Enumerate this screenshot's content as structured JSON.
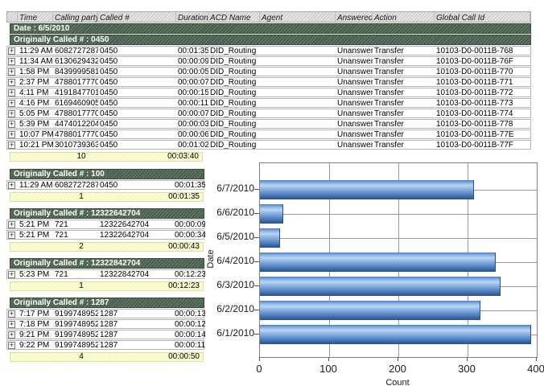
{
  "table": {
    "columns": [
      "Time",
      "Calling party #",
      "Called #",
      "Duration",
      "ACD Name",
      "Agent",
      "Answered",
      "Action",
      "Global Call Id"
    ],
    "date_header": "Date : 6/5/2010",
    "main_group": {
      "label": "Originally Called # : 0450",
      "rows": [
        [
          "11:29 AM",
          "6082727287",
          "0450",
          "00:01:35",
          "DID_Routing",
          "",
          "Unanswered",
          "Transfer",
          "10103-D0-0011B-768"
        ],
        [
          "11:34 AM",
          "6130629432",
          "0450",
          "00:00:09",
          "DID_Routing",
          "",
          "Unanswered",
          "Transfer",
          "10103-D0-0011B-76F"
        ],
        [
          "1:58 PM",
          "8439999581",
          "0450",
          "00:00:05",
          "DID_Routing",
          "",
          "Unanswered",
          "Transfer",
          "10103-D0-0011B-770"
        ],
        [
          "2:37 PM",
          "4788017770",
          "0450",
          "00:00:07",
          "DID_Routing",
          "",
          "Unanswered",
          "Transfer",
          "10103-D0-0011B-771"
        ],
        [
          "4:11 PM",
          "4191847701",
          "0450",
          "00:00:15",
          "DID_Routing",
          "",
          "Unanswered",
          "Transfer",
          "10103-D0-0011B-772"
        ],
        [
          "4:16 PM",
          "6169460905",
          "0450",
          "00:00:11",
          "DID_Routing",
          "",
          "Unanswered",
          "Transfer",
          "10103-D0-0011B-773"
        ],
        [
          "5:05 PM",
          "4788017770",
          "0450",
          "00:00:07",
          "DID_Routing",
          "",
          "Unanswered",
          "Transfer",
          "10103-D0-0011B-774"
        ],
        [
          "5:39 PM",
          "4474012204",
          "0450",
          "00:00:03",
          "DID_Routing",
          "",
          "Unanswered",
          "Transfer",
          "10103-D0-0011B-778"
        ],
        [
          "10:07 PM",
          "4788017770",
          "0450",
          "00:00:06",
          "DID_Routing",
          "",
          "Unanswered",
          "Transfer",
          "10103-D0-0011B-77E"
        ],
        [
          "10:21 PM",
          "3010739363",
          "0450",
          "00:01:02",
          "DID_Routing",
          "",
          "Unanswered",
          "Transfer",
          "10103-D0-0011B-77F"
        ]
      ],
      "summary": {
        "count": "10",
        "total": "00:03:40"
      }
    },
    "sections": [
      {
        "label": "Originally Called # : 100",
        "rows": [
          [
            "11:29 AM",
            "6082727287",
            "0450",
            "00:01:35"
          ]
        ],
        "summary": {
          "count": "1",
          "total": "00:01:35"
        }
      },
      {
        "label": "Originally Called # : 12322642704",
        "rows": [
          [
            "5:21 PM",
            "721",
            "12322642704",
            "00:00:09"
          ],
          [
            "5:21 PM",
            "721",
            "12322642704",
            "00:00:34"
          ]
        ],
        "summary": {
          "count": "2",
          "total": "00:00:43"
        }
      },
      {
        "label": "Originally Called # : 12322842704",
        "rows": [
          [
            "5:23 PM",
            "721",
            "12322842704",
            "00:12:23"
          ]
        ],
        "summary": {
          "count": "1",
          "total": "00:12:23"
        }
      },
      {
        "label": "Originally Called # : 1287",
        "rows": [
          [
            "7:17 PM",
            "9199748952",
            "1287",
            "00:00:13"
          ],
          [
            "7:18 PM",
            "9199748952",
            "1287",
            "00:00:12"
          ],
          [
            "9:21 PM",
            "9199748952",
            "1287",
            "00:00:14"
          ],
          [
            "9:22 PM",
            "9199748952",
            "1287",
            "00:00:11"
          ]
        ],
        "summary": {
          "count": "4",
          "total": "00:00:50"
        }
      }
    ]
  },
  "icons": {
    "expand": "+"
  },
  "colors": {
    "group_green": "#56705a",
    "summary_yellow": "#ffffc9",
    "bar_blue": "#5b8fd0",
    "grid_gray": "#999999"
  },
  "chart_data": {
    "type": "bar",
    "orientation": "horizontal",
    "title": "",
    "categories": [
      "6/7/2010",
      "6/6/2010",
      "6/5/2010",
      "6/4/2010",
      "6/3/2010",
      "6/2/2010",
      "6/1/2010"
    ],
    "values": [
      308,
      33,
      28,
      339,
      347,
      317,
      391
    ],
    "xlabel": "Count",
    "ylabel": "Date",
    "xlim": [
      0,
      400
    ],
    "xticks": [
      0,
      100,
      200,
      300,
      400
    ],
    "grid": true,
    "legend": "none"
  }
}
